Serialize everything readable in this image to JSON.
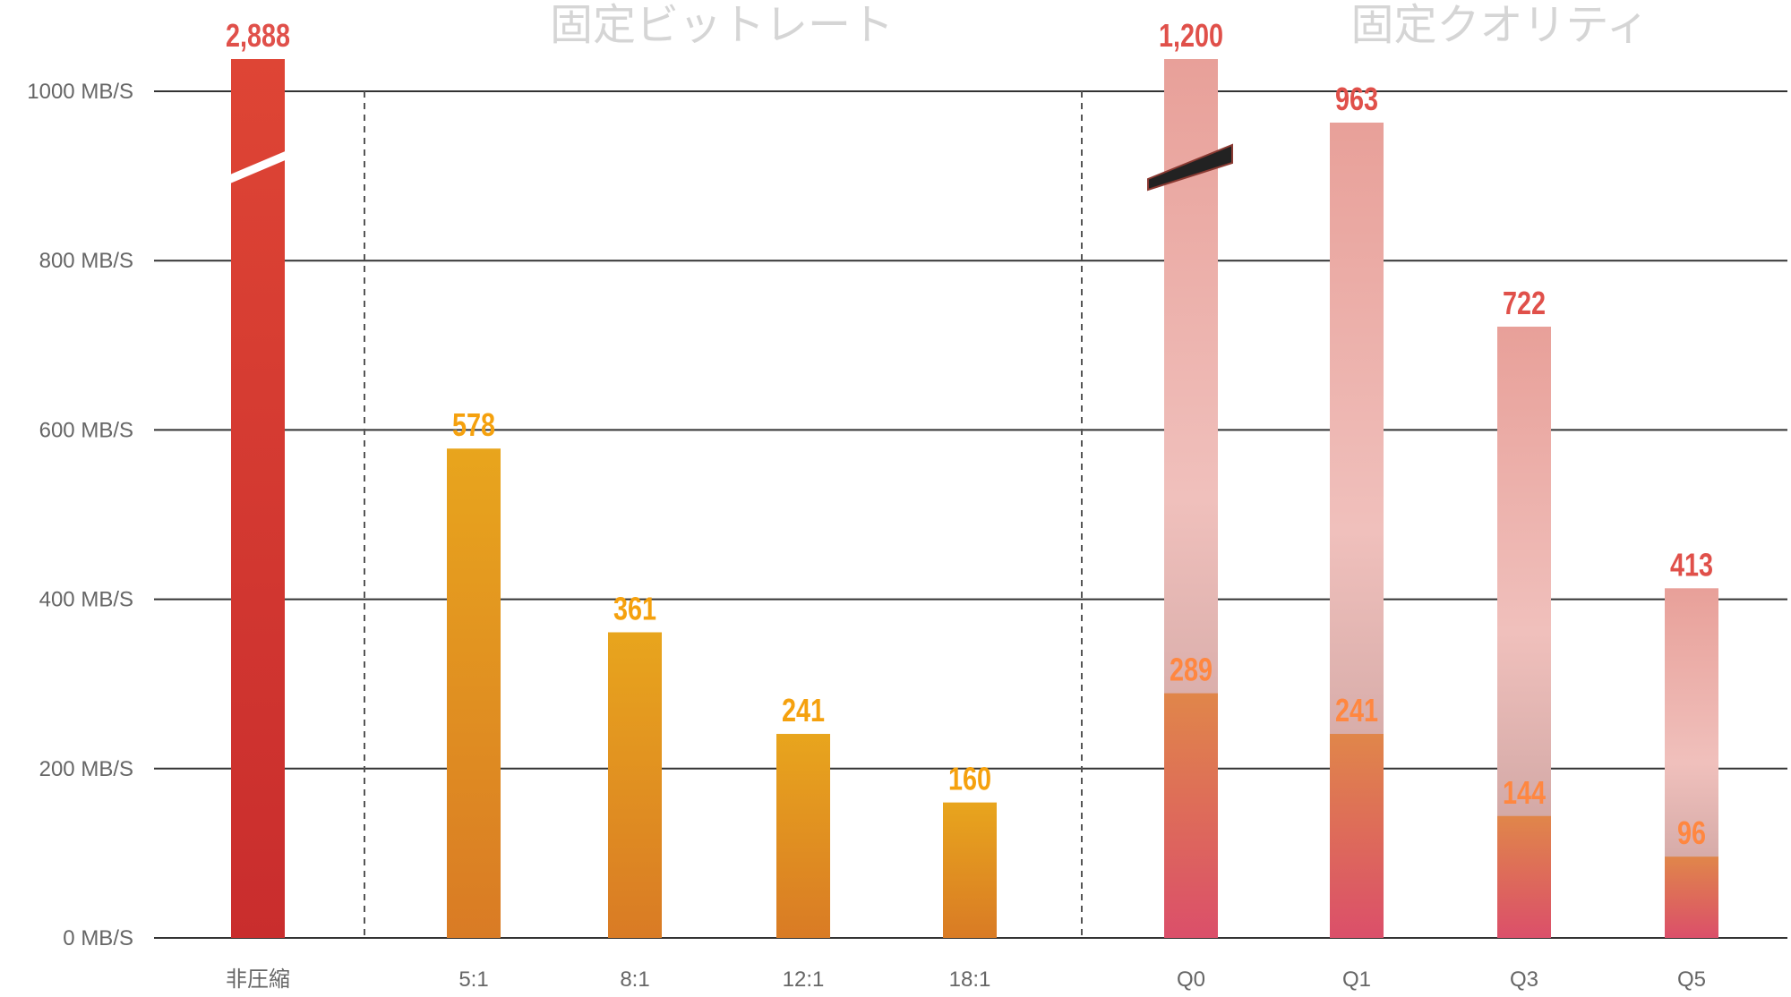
{
  "chart_data": {
    "type": "bar",
    "title": "",
    "xlabel": "",
    "ylabel": "",
    "ylim": [
      0,
      1000
    ],
    "y_ticks": [
      "0 MB/S",
      "200 MB/S",
      "400 MB/S",
      "600 MB/S",
      "800 MB/S",
      "1000 MB/S"
    ],
    "y_tick_values": [
      0,
      200,
      400,
      600,
      800,
      1000
    ],
    "grid": true,
    "groups": [
      {
        "title": "",
        "categories": [
          "非圧縮"
        ]
      },
      {
        "title": "固定ビットレート",
        "categories": [
          "5:1",
          "8:1",
          "12:1",
          "18:1"
        ]
      },
      {
        "title": "固定クオリティ",
        "categories": [
          "Q0",
          "Q1",
          "Q3",
          "Q5"
        ]
      }
    ],
    "categories": [
      "非圧縮",
      "5:1",
      "8:1",
      "12:1",
      "18:1",
      "Q0",
      "Q1",
      "Q3",
      "Q5"
    ],
    "series": [
      {
        "name": "max",
        "values": [
          2888,
          578,
          361,
          241,
          160,
          1200,
          963,
          722,
          413
        ],
        "labels": [
          "2,888",
          "578",
          "361",
          "241",
          "160",
          "1,200",
          "963",
          "722",
          "413"
        ]
      },
      {
        "name": "min",
        "values": [
          null,
          null,
          null,
          null,
          null,
          289,
          241,
          144,
          96
        ],
        "labels": [
          "",
          "",
          "",
          "",
          "",
          "289",
          "241",
          "144",
          "96"
        ]
      }
    ],
    "axis_break": [
      "非圧縮",
      "Q0"
    ],
    "colors": {
      "uncompressed": "#d63b30",
      "bitrate": "#e39a20",
      "quality_max": "#eba9a3",
      "quality_min": "#e07a4a",
      "label_red": "#e0504a",
      "label_orange": "#f5a10e",
      "label_min": "#ff8740"
    }
  }
}
